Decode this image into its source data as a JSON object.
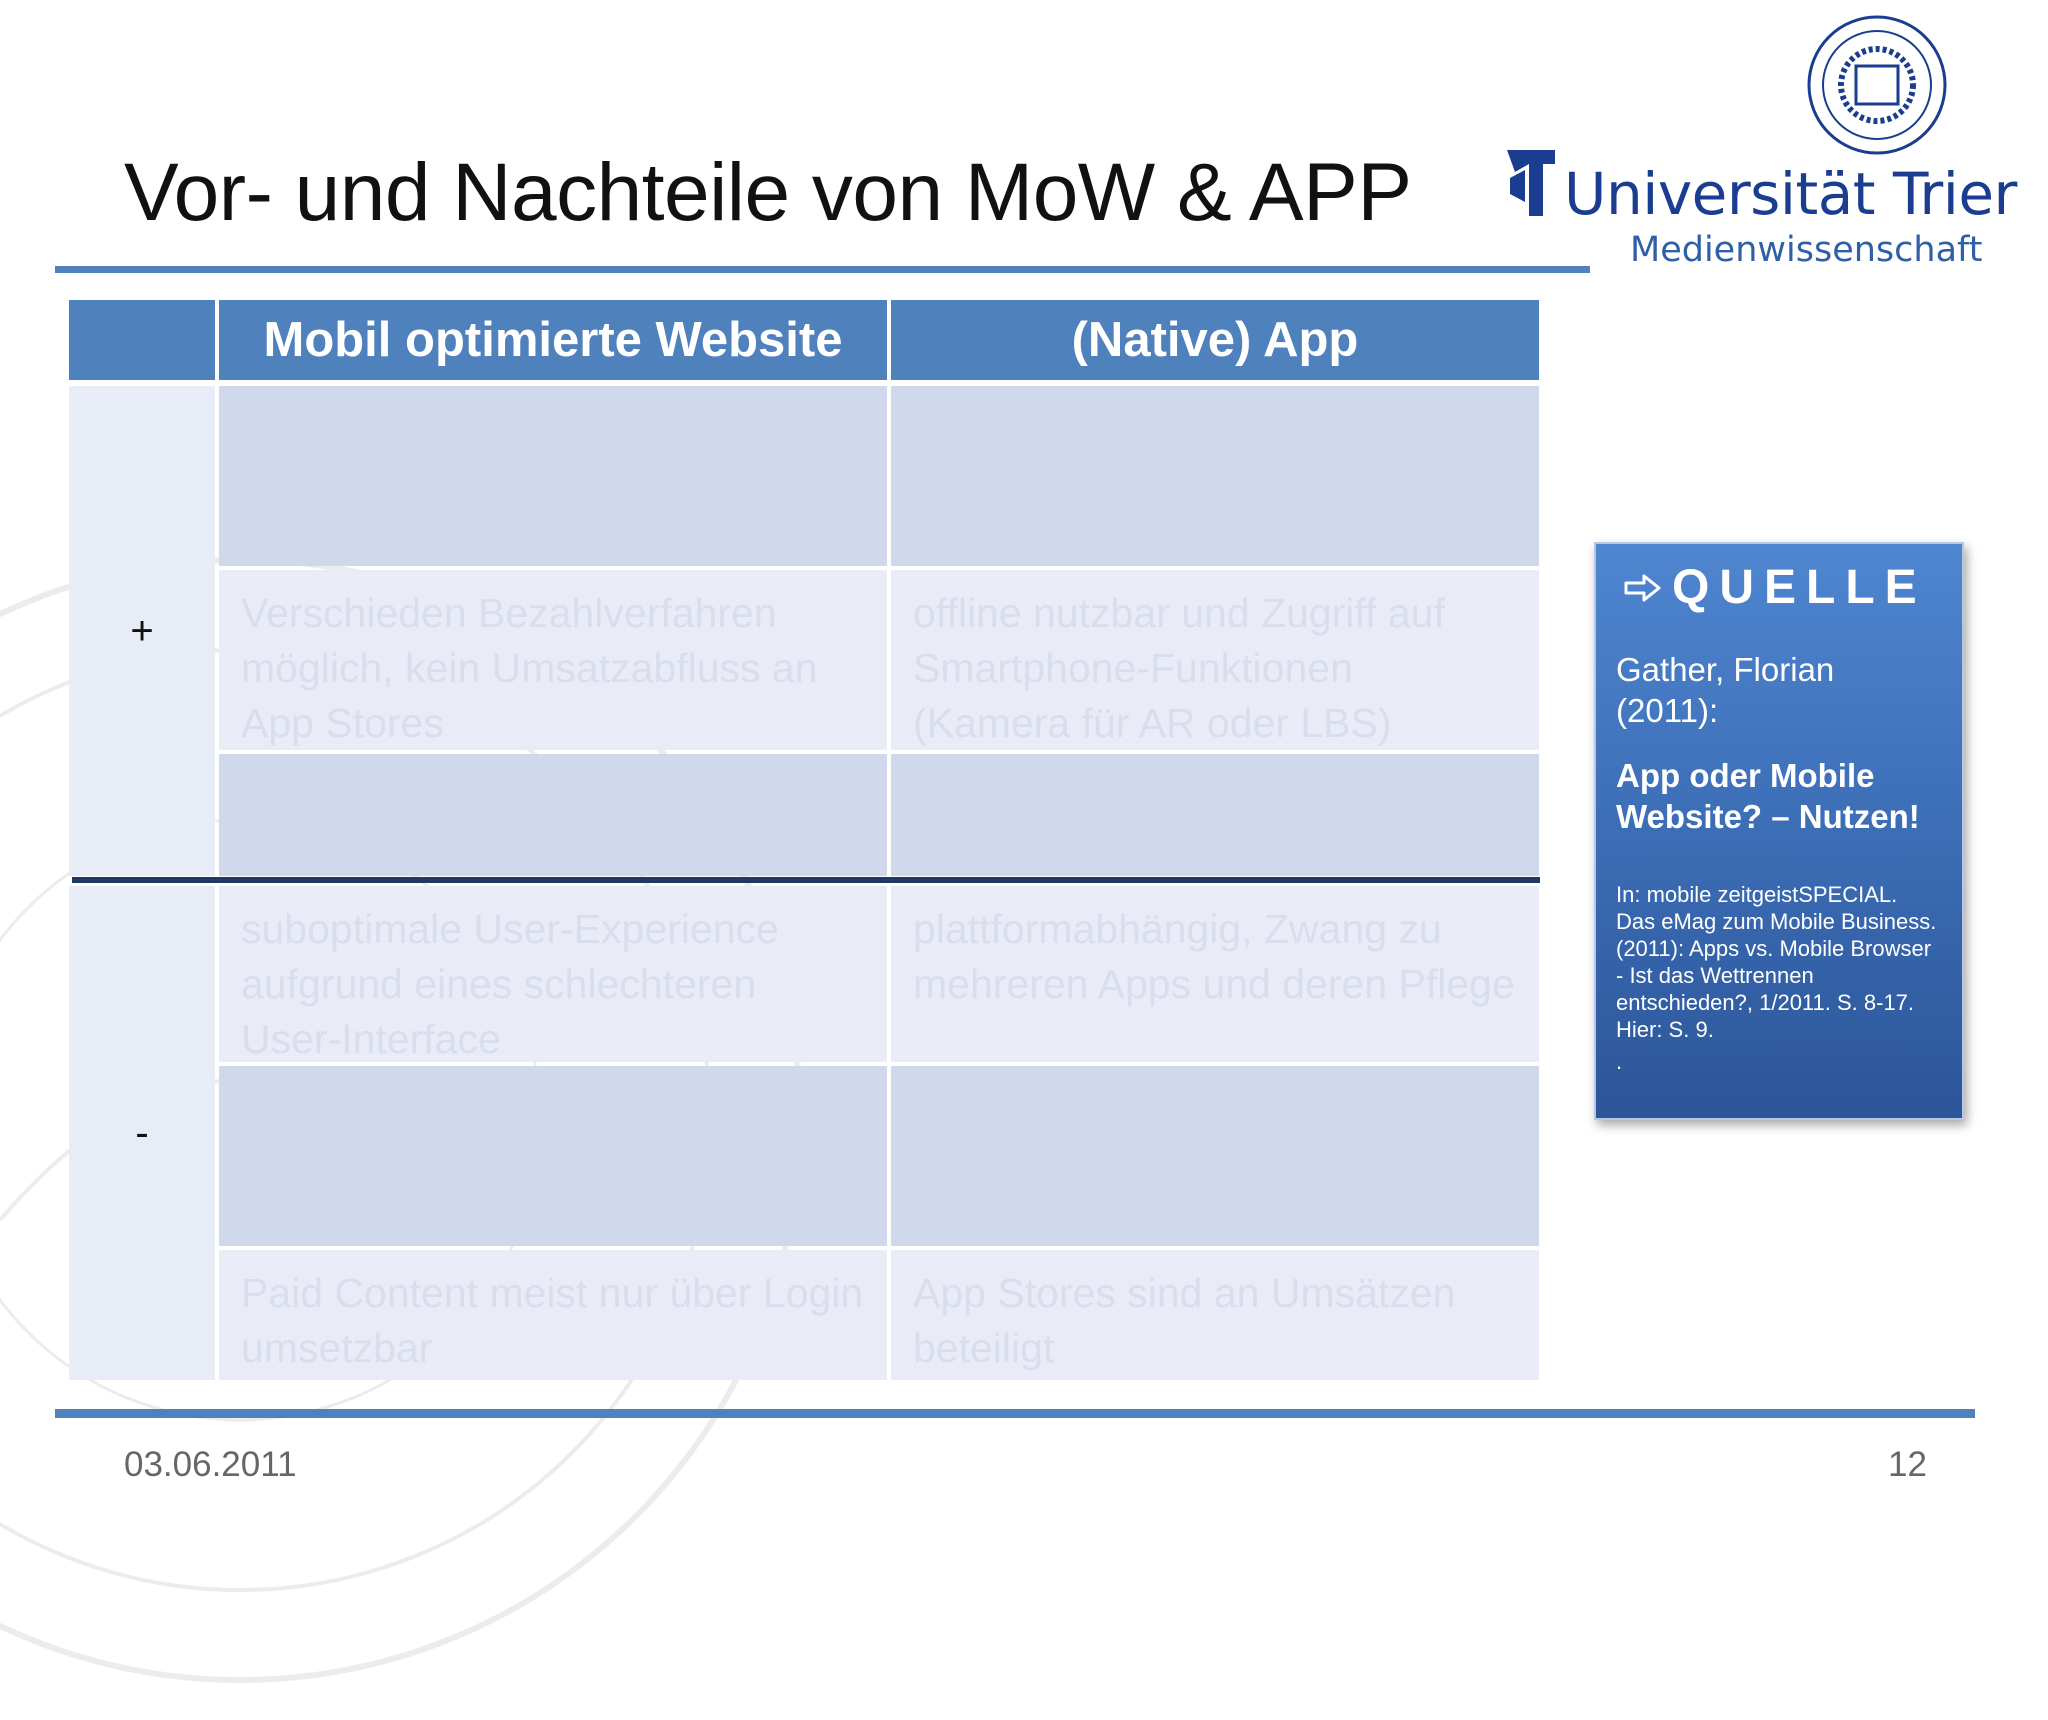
{
  "slide": {
    "title": "Vor- und Nachteile von MoW & APP",
    "date": "03.06.2011",
    "page_number": "12"
  },
  "logo": {
    "name": "Universität Trier",
    "department": "Medienwissenschaft",
    "brand_color": "#1a3d8f"
  },
  "table": {
    "headers": [
      "",
      "Mobil optimierte Website",
      "(Native) App"
    ],
    "plus_label": "+",
    "minus_label": "-",
    "plus_rows": [
      [
        "",
        ""
      ],
      [
        "Verschieden Bezahlverfahren möglich, kein Umsatzabfluss an App Stores",
        "offline nutzbar und Zugriff auf Smartphone-Funktionen (Kamera für AR oder LBS)"
      ],
      [
        "",
        ""
      ]
    ],
    "minus_rows": [
      [
        "suboptimale User-Experience aufgrund eines schlechteren User-Interface",
        "plattformabhängig, Zwang zu mehreren Apps und deren Pflege"
      ],
      [
        "",
        ""
      ],
      [
        "Paid Content meist nur über Login umsetzbar",
        "App Stores sind an Umsätzen beteiligt"
      ]
    ],
    "header_color": "#4f81bd",
    "divider_color": "#1f3864"
  },
  "source": {
    "icon": "arrow-right-icon",
    "title": "QUELLE",
    "author": "Gather, Florian (2011):",
    "work": "App oder Mobile Website? – Nutzen!",
    "reference": "In: mobile zeitgeistSPECIAL. Das eMag zum Mobile Business. (2011): Apps vs. Mobile Browser - Ist das Wettrennen entschieden?, 1/2011. S. 8-17. Hier: S. 9.",
    "trailing": "."
  }
}
